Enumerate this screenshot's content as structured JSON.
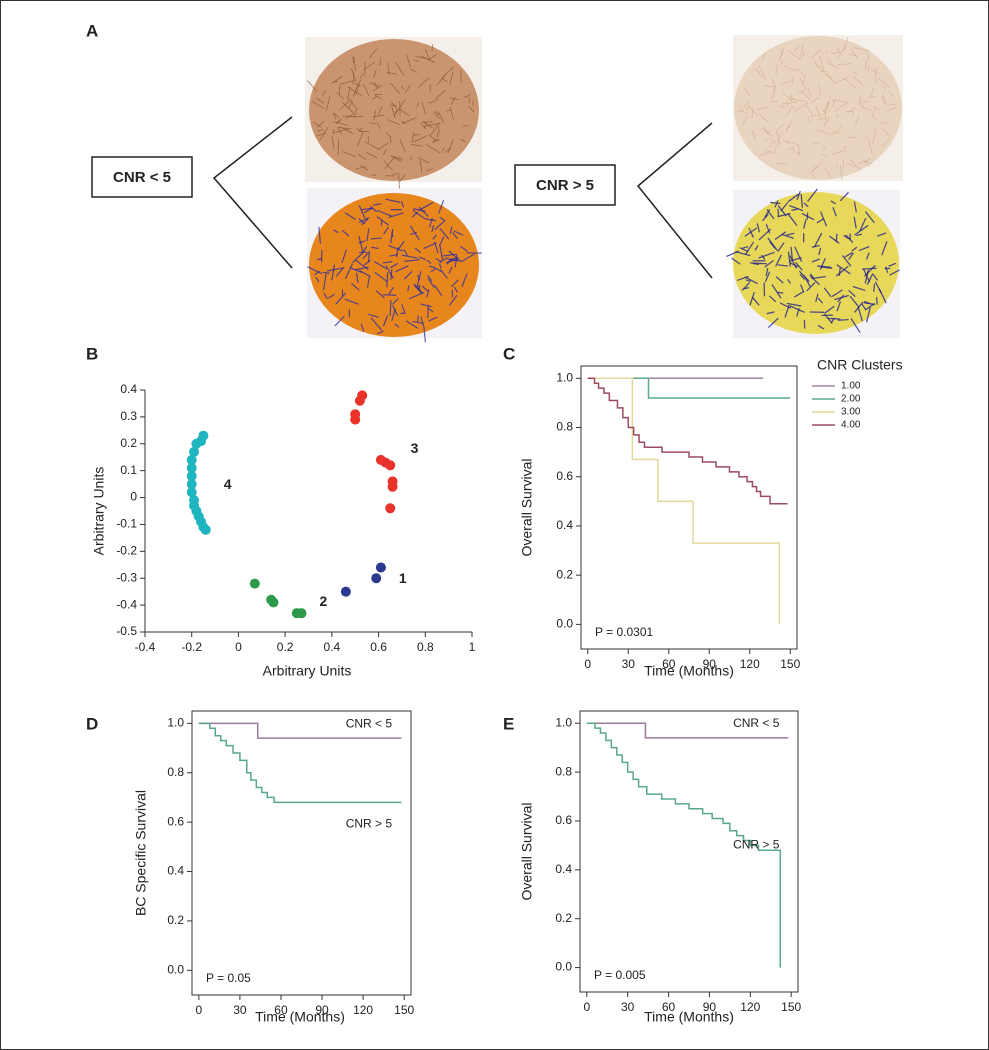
{
  "figure": {
    "panels": [
      "A",
      "B",
      "C",
      "D",
      "E"
    ],
    "groups": [
      "CNR < 5",
      "CNR > 5"
    ]
  },
  "chart_data": [
    {
      "type": "scatter",
      "xlabel": "Arbitrary Units",
      "ylabel": "Arbitrary Units",
      "xlim": [
        -0.4,
        1
      ],
      "xticks": [
        -0.4,
        -0.2,
        0,
        0.2,
        0.4,
        0.6,
        0.8,
        1
      ],
      "ylim": [
        -0.5,
        0.4
      ],
      "yticks": [
        -0.5,
        -0.4,
        -0.3,
        -0.2,
        -0.1,
        0,
        0.1,
        0.2,
        0.3,
        0.4
      ],
      "legend": "inline",
      "series": [
        {
          "name": "4",
          "color": "#1fb5bf",
          "x": [
            -0.15,
            -0.16,
            -0.18,
            -0.19,
            -0.2,
            -0.2,
            -0.2,
            -0.2,
            -0.2,
            -0.19,
            -0.19,
            -0.18,
            -0.17,
            -0.16,
            -0.15,
            -0.14
          ],
          "y": [
            0.23,
            0.21,
            0.2,
            0.17,
            0.14,
            0.11,
            0.08,
            0.05,
            0.02,
            -0.01,
            -0.03,
            -0.05,
            -0.07,
            -0.09,
            -0.11,
            -0.12
          ]
        },
        {
          "name": "3",
          "color": "#e8322a",
          "x": [
            0.53,
            0.52,
            0.5,
            0.5,
            0.61,
            0.63,
            0.65,
            0.66,
            0.66,
            0.65
          ],
          "y": [
            0.38,
            0.36,
            0.31,
            0.29,
            0.14,
            0.13,
            0.12,
            0.06,
            0.04,
            -0.04
          ]
        },
        {
          "name": "2",
          "color": "#2c9a4a",
          "x": [
            0.07,
            0.14,
            0.15,
            0.25,
            0.27
          ],
          "y": [
            -0.32,
            -0.38,
            -0.39,
            -0.43,
            -0.43
          ]
        },
        {
          "name": "1",
          "color": "#2b3a8f",
          "x": [
            0.61,
            0.59,
            0.46
          ],
          "y": [
            -0.26,
            -0.3,
            -0.35
          ]
        }
      ]
    },
    {
      "type": "step",
      "xlabel": "Time (Months)",
      "ylabel": "Overall Survival",
      "annotation": "P = 0.0301",
      "xlim": [
        -5,
        155
      ],
      "xticks": [
        0,
        30,
        60,
        90,
        120,
        150
      ],
      "ylim": [
        -0.1,
        1.05
      ],
      "yticks": [
        {
          "value": 0,
          "label": "0.0"
        },
        0.2,
        0.4,
        0.6,
        0.8,
        {
          "value": 1,
          "label": "1.0"
        }
      ],
      "legend": "right",
      "legend_title": "CNR Clusters",
      "series": [
        {
          "name": "1.00",
          "color": "#a585a0",
          "x": [
            0,
            130
          ],
          "values": [
            1,
            1
          ]
        },
        {
          "name": "2.00",
          "color": "#5aa88c",
          "x": [
            0,
            45,
            150
          ],
          "values": [
            1,
            0.92,
            0.92
          ]
        },
        {
          "name": "3.00",
          "color": "#e3d99a",
          "x": [
            0,
            33,
            52,
            78,
            142
          ],
          "values": [
            1,
            0.67,
            0.5,
            0.33,
            0
          ]
        },
        {
          "name": "4.00",
          "color": "#9c4a62",
          "x": [
            0,
            5,
            8,
            12,
            16,
            22,
            26,
            30,
            34,
            38,
            42,
            55,
            75,
            85,
            95,
            105,
            112,
            118,
            122,
            125,
            128,
            135,
            148
          ],
          "values": [
            1,
            0.98,
            0.96,
            0.94,
            0.91,
            0.88,
            0.84,
            0.8,
            0.77,
            0.74,
            0.72,
            0.7,
            0.68,
            0.66,
            0.64,
            0.62,
            0.6,
            0.58,
            0.56,
            0.54,
            0.52,
            0.49,
            0.49
          ]
        }
      ]
    },
    {
      "type": "step",
      "xlabel": "Time (Months)",
      "ylabel": "BC Specific Survival",
      "annotation": "P = 0.05",
      "xlim": [
        -5,
        155
      ],
      "xticks": [
        0,
        30,
        60,
        90,
        120,
        150
      ],
      "ylim": [
        -0.1,
        1.05
      ],
      "yticks": [
        {
          "value": 0,
          "label": "0.0"
        },
        0.2,
        0.4,
        0.6,
        0.8,
        {
          "value": 1,
          "label": "1.0"
        }
      ],
      "legend": "inline",
      "series": [
        {
          "name": "CNR < 5",
          "color": "#9a7a9c",
          "x": [
            0,
            43,
            148
          ],
          "values": [
            1,
            0.94,
            0.94
          ]
        },
        {
          "name": "CNR > 5",
          "color": "#5aa88c",
          "x": [
            0,
            8,
            12,
            16,
            20,
            25,
            30,
            35,
            38,
            42,
            46,
            50,
            55,
            148
          ],
          "values": [
            1,
            0.98,
            0.95,
            0.93,
            0.91,
            0.88,
            0.85,
            0.8,
            0.77,
            0.74,
            0.72,
            0.7,
            0.68,
            0.68
          ]
        }
      ]
    },
    {
      "type": "step",
      "xlabel": "Time (Months)",
      "ylabel": "Overall Survival",
      "annotation": "P = 0.005",
      "xlim": [
        -5,
        155
      ],
      "xticks": [
        0,
        30,
        60,
        90,
        120,
        150
      ],
      "ylim": [
        -0.1,
        1.05
      ],
      "yticks": [
        {
          "value": 0,
          "label": "0.0"
        },
        0.2,
        0.4,
        0.6,
        0.8,
        {
          "value": 1,
          "label": "1.0"
        }
      ],
      "legend": "inline",
      "series": [
        {
          "name": "CNR < 5",
          "color": "#9a7a9c",
          "x": [
            0,
            43,
            148
          ],
          "values": [
            1,
            0.94,
            0.94
          ]
        },
        {
          "name": "CNR > 5",
          "color": "#5aa88c",
          "x": [
            0,
            6,
            10,
            14,
            18,
            22,
            26,
            30,
            34,
            38,
            44,
            55,
            65,
            75,
            85,
            92,
            100,
            105,
            110,
            115,
            120,
            126,
            142
          ],
          "values": [
            1,
            0.98,
            0.96,
            0.93,
            0.9,
            0.87,
            0.84,
            0.8,
            0.77,
            0.74,
            0.71,
            0.69,
            0.67,
            0.65,
            0.63,
            0.61,
            0.59,
            0.56,
            0.54,
            0.52,
            0.5,
            0.48,
            0
          ]
        }
      ]
    }
  ]
}
